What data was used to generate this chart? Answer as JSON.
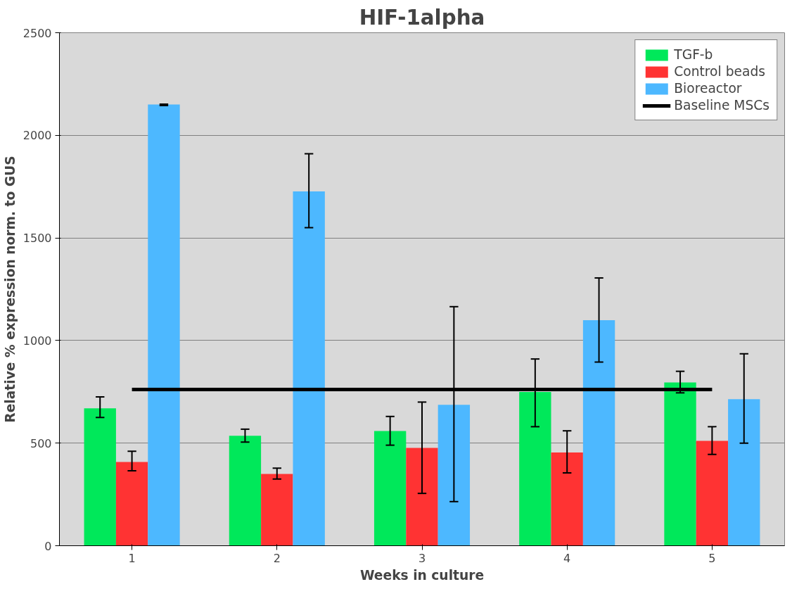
{
  "chart_data": {
    "type": "bar",
    "title": "HIF-1alpha",
    "xlabel": "Weeks in culture",
    "ylabel": "Relative % expression norm. to GUS",
    "categories": [
      "1",
      "2",
      "3",
      "4",
      "5"
    ],
    "series": [
      {
        "name": "TGF-b",
        "color": "#00e85a",
        "values": [
          670,
          536,
          559,
          749,
          796
        ],
        "errors": [
          [
            625,
            725
          ],
          [
            505,
            568
          ],
          [
            490,
            630
          ],
          [
            580,
            910
          ],
          [
            745,
            850
          ]
        ]
      },
      {
        "name": "Control beads",
        "color": "#ff3333",
        "values": [
          408,
          350,
          477,
          454,
          511
        ],
        "errors": [
          [
            365,
            460
          ],
          [
            325,
            378
          ],
          [
            255,
            700
          ],
          [
            355,
            560
          ],
          [
            445,
            580
          ]
        ]
      },
      {
        "name": "Bioreactor",
        "color": "#4db8ff",
        "values": [
          2150,
          1727,
          687,
          1099,
          714
        ],
        "errors": [
          [
            2145,
            2152
          ],
          [
            1550,
            1910
          ],
          [
            215,
            1165
          ],
          [
            895,
            1305
          ],
          [
            500,
            935
          ]
        ]
      },
      {
        "name": "Baseline MSCs",
        "type": "line",
        "color": "#000000",
        "values": [
          761,
          761,
          761,
          761,
          761
        ]
      }
    ],
    "ylim": [
      0,
      2500
    ],
    "yticks": [
      0,
      500,
      1000,
      1500,
      2000,
      2500
    ],
    "grid": "y",
    "legend": "top right"
  }
}
